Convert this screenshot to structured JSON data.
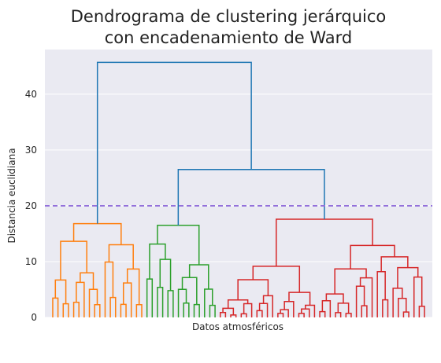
{
  "chart_data": {
    "type": "dendrogram",
    "title": [
      "Dendrograma de clustering jerárquico",
      "con encadenamiento de Ward"
    ],
    "xlabel": "Datos atmosféricos",
    "ylabel": "Distancia euclidiana",
    "ylim": [
      0,
      48
    ],
    "yticks": [
      "0",
      "10",
      "20",
      "30",
      "40"
    ],
    "ytick_values": [
      0,
      10,
      20,
      30,
      40
    ],
    "grid": true,
    "background": "#eaeaf2",
    "cut_threshold": 20,
    "threshold_color": "#9370db",
    "link_color_above_cut": "#1f77b4",
    "leaf_count": 72,
    "clusters": [
      {
        "color": "#ff7f0e",
        "leaves": 18,
        "merge_height": 16.8
      },
      {
        "color": "#2ca02c",
        "leaves": 14,
        "merge_height": 16.5
      },
      {
        "color": "#d62728",
        "leaves": 40,
        "merge_height": 17.6
      }
    ],
    "top_merges": [
      {
        "between": [
          "green",
          "red"
        ],
        "height": 26.5
      },
      {
        "between": [
          "orange",
          "green+red"
        ],
        "height": 45.7
      }
    ]
  }
}
